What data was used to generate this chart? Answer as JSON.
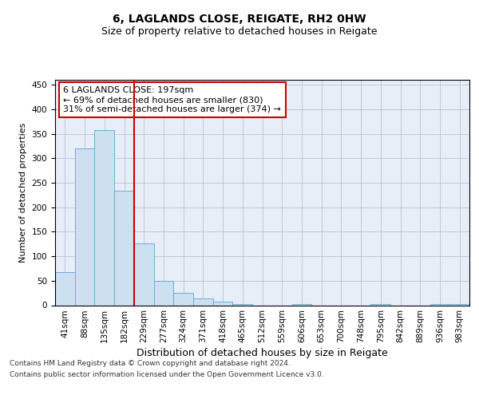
{
  "title1": "6, LAGLANDS CLOSE, REIGATE, RH2 0HW",
  "title2": "Size of property relative to detached houses in Reigate",
  "xlabel": "Distribution of detached houses by size in Reigate",
  "ylabel": "Number of detached properties",
  "categories": [
    "41sqm",
    "88sqm",
    "135sqm",
    "182sqm",
    "229sqm",
    "277sqm",
    "324sqm",
    "371sqm",
    "418sqm",
    "465sqm",
    "512sqm",
    "559sqm",
    "606sqm",
    "653sqm",
    "700sqm",
    "748sqm",
    "795sqm",
    "842sqm",
    "889sqm",
    "936sqm",
    "983sqm"
  ],
  "values": [
    67,
    320,
    358,
    234,
    126,
    49,
    25,
    14,
    8,
    3,
    0,
    0,
    3,
    0,
    0,
    0,
    3,
    0,
    0,
    3,
    3
  ],
  "bar_color": "#cce0f0",
  "bar_edge_color": "#6aaed6",
  "vline_color": "#cc0000",
  "annotation_text": "6 LAGLANDS CLOSE: 197sqm\n← 69% of detached houses are smaller (830)\n31% of semi-detached houses are larger (374) →",
  "annotation_box_color": "white",
  "annotation_box_edge_color": "#cc0000",
  "ylim": [
    0,
    460
  ],
  "yticks": [
    0,
    50,
    100,
    150,
    200,
    250,
    300,
    350,
    400,
    450
  ],
  "footer1": "Contains HM Land Registry data © Crown copyright and database right 2024.",
  "footer2": "Contains public sector information licensed under the Open Government Licence v3.0.",
  "bg_color": "#e8eef8",
  "grid_color": "#b0b8d0",
  "title1_fontsize": 10,
  "title2_fontsize": 9,
  "xlabel_fontsize": 9,
  "ylabel_fontsize": 8,
  "tick_fontsize": 7.5,
  "footer_fontsize": 6.5,
  "ann_fontsize": 8
}
